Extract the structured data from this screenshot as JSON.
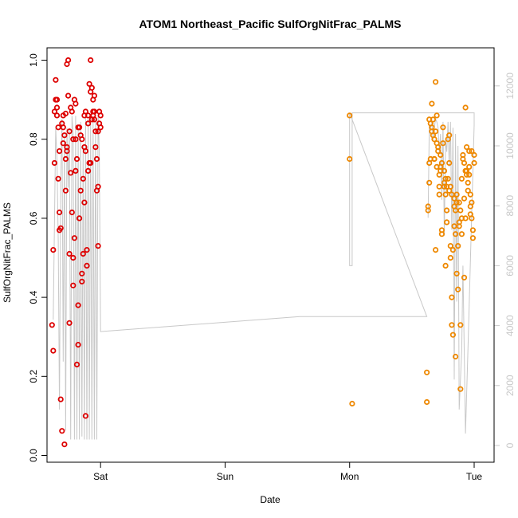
{
  "chart_data": {
    "type": "scatter",
    "title": "ATOM1 Northeast_Pacific SulfOrgNitFrac_PALMS",
    "xlabel": "Date",
    "ylabel": "SulfOrgNitFrac_PALMS",
    "x_ticks": [
      "Sat",
      "Sun",
      "Mon",
      "Tue"
    ],
    "y_ticks": [
      "0.0",
      "0.2",
      "0.4",
      "0.6",
      "0.8",
      "1.0"
    ],
    "y2_ticks": [
      "0",
      "2000",
      "4000",
      "6000",
      "8000",
      "10000",
      "12000"
    ],
    "xlim": [
      -0.43,
      3.16
    ],
    "ylim": [
      0,
      1
    ],
    "y2lim": [
      0,
      12500
    ],
    "grid": false,
    "colors": {
      "red": "#dd0000",
      "orange": "#ee8800",
      "gray_line": "#c8c8c8"
    },
    "series": [
      {
        "color": "#dd0000",
        "x": [
          -0.39,
          -0.38,
          -0.38,
          -0.37,
          -0.37,
          -0.36,
          -0.36,
          -0.35,
          -0.35,
          -0.34,
          -0.34,
          -0.33,
          -0.33,
          -0.32,
          -0.32,
          -0.31,
          -0.31,
          -0.3,
          -0.3,
          -0.29,
          -0.29,
          -0.28,
          -0.28,
          -0.27,
          -0.27,
          -0.26,
          -0.26,
          -0.25,
          -0.25,
          -0.24,
          -0.24,
          -0.23,
          -0.23,
          -0.22,
          -0.22,
          -0.21,
          -0.21,
          -0.2,
          -0.2,
          -0.19,
          -0.19,
          -0.18,
          -0.18,
          -0.17,
          -0.17,
          -0.16,
          -0.16,
          -0.15,
          -0.15,
          -0.14,
          -0.14,
          -0.13,
          -0.13,
          -0.12,
          -0.12,
          -0.11,
          -0.11,
          -0.1,
          -0.1,
          -0.09,
          -0.09,
          -0.08,
          -0.08,
          -0.07,
          -0.07,
          -0.06,
          -0.06,
          -0.05,
          -0.05,
          -0.04,
          -0.04,
          -0.03,
          -0.03,
          -0.02,
          -0.02,
          -0.01,
          -0.01,
          0.0,
          0.0,
          -0.3,
          -0.25,
          -0.2,
          -0.15,
          -0.1,
          -0.05,
          -0.35,
          -0.28,
          -0.22,
          -0.12,
          -0.08,
          -0.33,
          -0.27,
          -0.18,
          -0.13,
          -0.06,
          -0.02
        ],
        "y": [
          0.33,
          0.265,
          0.52,
          0.74,
          0.87,
          0.9,
          0.95,
          0.88,
          0.86,
          0.83,
          0.7,
          0.615,
          0.57,
          0.575,
          0.142,
          0.062,
          0.84,
          0.83,
          0.79,
          0.81,
          0.028,
          0.75,
          0.67,
          0.77,
          0.99,
          1.0,
          0.91,
          0.51,
          0.335,
          0.715,
          0.88,
          0.87,
          0.615,
          0.43,
          0.5,
          0.55,
          0.9,
          0.89,
          0.72,
          0.75,
          0.23,
          0.28,
          0.38,
          0.6,
          0.83,
          0.81,
          0.67,
          0.44,
          0.46,
          0.51,
          0.7,
          0.64,
          0.78,
          0.87,
          0.1,
          0.52,
          0.48,
          0.86,
          0.72,
          0.74,
          0.94,
          1.0,
          0.92,
          0.93,
          0.85,
          0.9,
          0.86,
          0.91,
          0.87,
          0.82,
          0.78,
          0.75,
          0.67,
          0.68,
          0.53,
          0.87,
          0.84,
          0.83,
          0.86,
          0.86,
          0.82,
          0.8,
          0.8,
          0.84,
          0.85,
          0.9,
          0.865,
          0.8,
          0.77,
          0.74,
          0.77,
          0.78,
          0.83,
          0.86,
          0.87,
          0.82
        ]
      },
      {
        "color": "#ee8800",
        "x": [
          2.0,
          2.0,
          2.02,
          2.62,
          2.62,
          2.63,
          2.63,
          2.64,
          2.64,
          2.65,
          2.65,
          2.66,
          2.66,
          2.67,
          2.67,
          2.68,
          2.68,
          2.69,
          2.69,
          2.7,
          2.7,
          2.71,
          2.71,
          2.72,
          2.72,
          2.73,
          2.73,
          2.74,
          2.74,
          2.75,
          2.75,
          2.76,
          2.76,
          2.77,
          2.77,
          2.78,
          2.78,
          2.79,
          2.79,
          2.8,
          2.8,
          2.81,
          2.81,
          2.82,
          2.82,
          2.83,
          2.83,
          2.84,
          2.84,
          2.85,
          2.85,
          2.86,
          2.86,
          2.87,
          2.87,
          2.88,
          2.88,
          2.89,
          2.89,
          2.9,
          2.9,
          2.91,
          2.91,
          2.92,
          2.92,
          2.93,
          2.93,
          2.94,
          2.94,
          2.95,
          2.95,
          2.96,
          2.96,
          2.97,
          2.97,
          2.98,
          2.98,
          2.99,
          2.99,
          3.0,
          3.0,
          2.66,
          2.7,
          2.74,
          2.78,
          2.82,
          2.86,
          2.9,
          2.94,
          2.98,
          2.68,
          2.72,
          2.76,
          2.8,
          2.84,
          2.88,
          2.92,
          2.96,
          2.64,
          2.69,
          2.73,
          2.77,
          2.81,
          2.85,
          2.89,
          2.93,
          2.97
        ],
        "y": [
          0.86,
          0.75,
          0.131,
          0.21,
          0.135,
          0.63,
          0.62,
          0.74,
          0.69,
          0.75,
          0.84,
          0.83,
          0.89,
          0.85,
          0.81,
          0.8,
          0.75,
          0.52,
          0.945,
          0.73,
          0.86,
          0.78,
          0.77,
          0.68,
          0.66,
          0.76,
          0.72,
          0.56,
          0.57,
          0.83,
          0.79,
          0.72,
          0.68,
          0.48,
          0.66,
          0.62,
          0.59,
          0.7,
          0.8,
          0.74,
          0.81,
          0.53,
          0.5,
          0.4,
          0.33,
          0.305,
          0.52,
          0.58,
          0.65,
          0.62,
          0.25,
          0.66,
          0.46,
          0.42,
          0.53,
          0.64,
          0.58,
          0.33,
          0.168,
          0.56,
          0.6,
          0.76,
          0.75,
          0.74,
          0.45,
          0.88,
          0.72,
          0.78,
          0.71,
          0.67,
          0.69,
          0.73,
          0.77,
          0.63,
          0.61,
          0.64,
          0.6,
          0.55,
          0.57,
          0.76,
          0.74,
          0.82,
          0.79,
          0.74,
          0.68,
          0.66,
          0.64,
          0.7,
          0.72,
          0.77,
          0.75,
          0.71,
          0.69,
          0.67,
          0.63,
          0.59,
          0.65,
          0.71,
          0.85,
          0.82,
          0.73,
          0.7,
          0.68,
          0.56,
          0.62,
          0.6,
          0.66
        ]
      }
    ],
    "line2": {
      "color": "#c8c8c8",
      "x": [
        -0.38,
        -0.36,
        -0.35,
        -0.34,
        -0.33,
        -0.32,
        -0.31,
        -0.3,
        -0.29,
        -0.28,
        -0.27,
        -0.26,
        -0.25,
        -0.24,
        -0.23,
        -0.22,
        -0.21,
        -0.2,
        -0.19,
        -0.18,
        -0.17,
        -0.16,
        -0.15,
        -0.14,
        -0.13,
        -0.12,
        -0.11,
        -0.1,
        -0.09,
        -0.08,
        -0.07,
        -0.06,
        -0.05,
        -0.04,
        -0.03,
        -0.02,
        -0.01,
        0.0,
        0.0,
        1.6,
        2.62,
        2.62,
        2.0,
        2.0,
        2.02,
        2.02,
        3.0,
        3.0,
        2.95,
        2.93,
        2.91,
        2.9,
        2.88,
        2.87,
        2.86,
        2.85,
        2.84,
        2.83,
        2.82,
        2.81,
        2.8,
        2.79,
        2.78,
        2.77,
        2.76,
        2.75,
        2.74,
        2.73,
        2.72,
        2.71,
        2.7,
        2.69,
        2.68,
        2.67,
        2.66,
        2.65,
        2.64,
        2.63
      ],
      "y": [
        4200,
        10600,
        9500,
        6800,
        1200,
        8800,
        10900,
        2800,
        10400,
        500,
        10600,
        8600,
        10600,
        200,
        11000,
        10400,
        200,
        11000,
        200,
        10600,
        200,
        10800,
        300,
        10000,
        200,
        11100,
        200,
        10900,
        200,
        11000,
        200,
        10900,
        200,
        11100,
        200,
        11100,
        9800,
        3800,
        3800,
        4300,
        4300,
        4300,
        11100,
        6000,
        6000,
        11100,
        11100,
        10700,
        3200,
        400,
        6000,
        3200,
        1200,
        10000,
        4800,
        10400,
        2200,
        10600,
        7200,
        10800,
        9300,
        10800,
        9800,
        10200,
        7000,
        10800,
        8200,
        10400,
        9800,
        10600,
        10800,
        10900,
        10600,
        10200,
        10800,
        10600,
        10700,
        7600
      ]
    }
  }
}
